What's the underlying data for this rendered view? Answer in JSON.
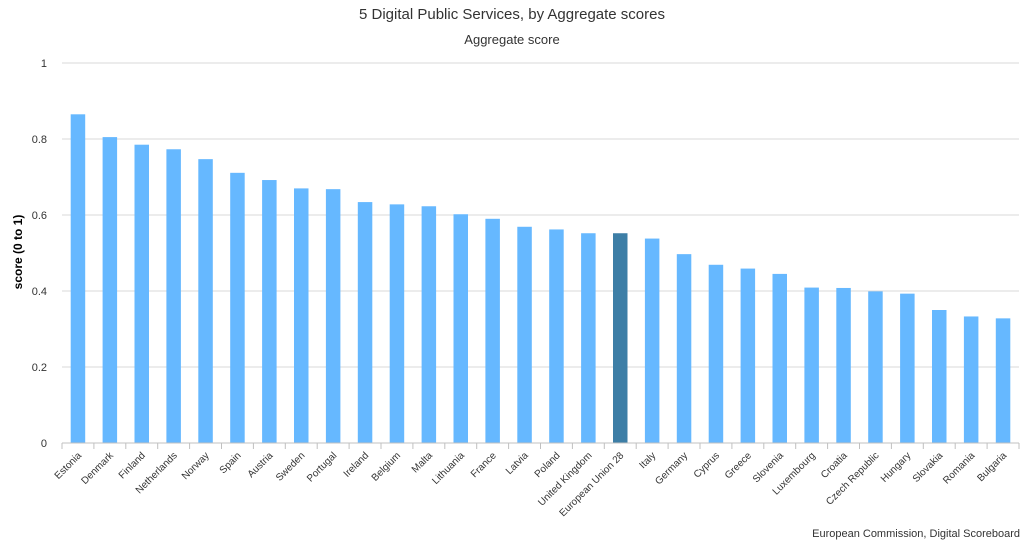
{
  "chart_data": {
    "type": "bar",
    "title": "5 Digital Public Services, by Aggregate scores",
    "subtitle": "Aggregate score",
    "xlabel": "",
    "ylabel": "score (0 to 1)",
    "ylim": [
      0,
      1
    ],
    "yticks": [
      "0",
      "0.2",
      "0.4",
      "0.6",
      "0.8",
      "1"
    ],
    "grid": true,
    "credit": "European Commission, Digital Scoreboard",
    "colors": {
      "default": "#66b8ff",
      "highlight": "#3d7ea6"
    },
    "highlight_category": "European Union 28",
    "categories": [
      "Estonia",
      "Denmark",
      "Finland",
      "Netherlands",
      "Norway",
      "Spain",
      "Austria",
      "Sweden",
      "Portugal",
      "Ireland",
      "Belgium",
      "Malta",
      "Lithuania",
      "France",
      "Latvia",
      "Poland",
      "United Kingdom",
      "European Union 28",
      "Italy",
      "Germany",
      "Cyprus",
      "Greece",
      "Slovenia",
      "Luxembourg",
      "Croatia",
      "Czech Republic",
      "Hungary",
      "Slovakia",
      "Romania",
      "Bulgaria"
    ],
    "values": [
      0.865,
      0.805,
      0.785,
      0.773,
      0.747,
      0.711,
      0.692,
      0.67,
      0.668,
      0.634,
      0.628,
      0.623,
      0.602,
      0.59,
      0.569,
      0.562,
      0.552,
      0.552,
      0.538,
      0.497,
      0.469,
      0.459,
      0.445,
      0.409,
      0.408,
      0.399,
      0.393,
      0.35,
      0.333,
      0.328
    ]
  }
}
